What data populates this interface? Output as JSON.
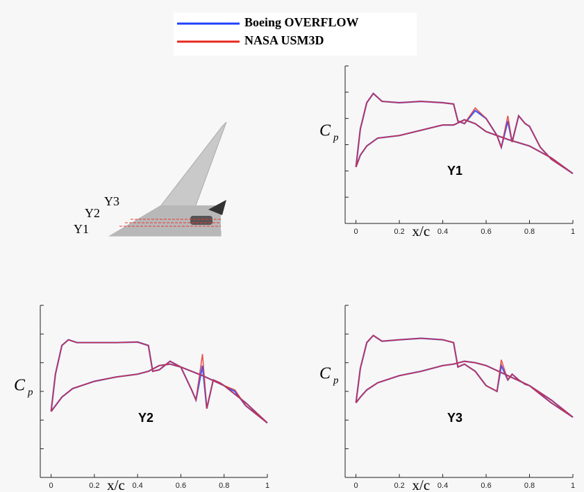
{
  "chart_data": [
    {
      "type": "line",
      "title": "Y1",
      "y_label": {
        "text": "C",
        "subscript": "p"
      },
      "x_label": "x/c",
      "x": [
        0,
        0.02,
        0.05,
        0.08,
        0.12,
        0.2,
        0.3,
        0.4,
        0.45,
        0.47,
        0.5,
        0.55,
        0.6,
        0.65,
        0.67,
        0.7,
        0.72,
        0.75,
        0.78,
        0.8,
        0.85,
        0.9,
        1,
        0.9,
        0.8,
        0.7,
        0.6,
        0.55,
        0.5,
        0.45,
        0.4,
        0.3,
        0.2,
        0.1,
        0.05,
        0.02,
        0
      ],
      "xlim": [
        -0.05,
        1
      ],
      "xticks": [
        0,
        0.2,
        0.4,
        0.6,
        0.8,
        1
      ],
      "ylim": [
        0,
        6
      ],
      "yticks": [
        0,
        1,
        2,
        3,
        4,
        5,
        6
      ],
      "series": [
        {
          "name": "Boeing OVERFLOW",
          "color": "#1f3fff",
          "values": [
            2.15,
            3.6,
            4.6,
            4.95,
            4.65,
            4.6,
            4.65,
            4.6,
            4.55,
            3.9,
            3.8,
            4.3,
            4.0,
            3.35,
            2.9,
            3.9,
            3.1,
            4.1,
            3.8,
            3.7,
            2.9,
            2.45,
            1.9,
            2.5,
            2.95,
            3.2,
            3.5,
            3.8,
            3.95,
            3.75,
            3.75,
            3.55,
            3.35,
            3.25,
            2.95,
            2.6,
            2.15
          ]
        },
        {
          "name": "NASA USM3D",
          "color": "#e8281e",
          "values": [
            2.15,
            3.6,
            4.6,
            4.95,
            4.65,
            4.6,
            4.65,
            4.6,
            4.55,
            3.9,
            3.8,
            4.4,
            4.0,
            3.35,
            2.9,
            4.1,
            3.1,
            4.1,
            3.8,
            3.7,
            2.9,
            2.45,
            1.9,
            2.5,
            2.95,
            3.2,
            3.5,
            3.8,
            3.95,
            3.75,
            3.75,
            3.55,
            3.35,
            3.25,
            2.95,
            2.6,
            2.15
          ]
        }
      ]
    },
    {
      "type": "line",
      "title": "Y2",
      "y_label": {
        "text": "C",
        "subscript": "p"
      },
      "x_label": "x/c",
      "x": [
        0,
        0.02,
        0.05,
        0.08,
        0.12,
        0.2,
        0.3,
        0.4,
        0.45,
        0.47,
        0.5,
        0.55,
        0.6,
        0.65,
        0.67,
        0.7,
        0.72,
        0.75,
        0.78,
        0.8,
        0.85,
        0.9,
        1,
        0.9,
        0.8,
        0.7,
        0.6,
        0.55,
        0.5,
        0.45,
        0.4,
        0.3,
        0.2,
        0.1,
        0.05,
        0.02,
        0
      ],
      "xlim": [
        -0.05,
        1
      ],
      "xticks": [
        0,
        0.2,
        0.4,
        0.6,
        0.8,
        1
      ],
      "ylim": [
        0,
        6
      ],
      "yticks": [
        0,
        1,
        2,
        3,
        4,
        5,
        6
      ],
      "series": [
        {
          "color": "#1f3fff",
          "values": [
            2.3,
            3.6,
            4.6,
            4.8,
            4.7,
            4.7,
            4.7,
            4.72,
            4.6,
            3.7,
            3.75,
            4.05,
            3.85,
            3.05,
            2.7,
            3.9,
            2.4,
            3.4,
            3.3,
            3.2,
            3.0,
            2.5,
            1.9,
            2.6,
            3.2,
            3.55,
            3.85,
            3.95,
            3.9,
            3.7,
            3.6,
            3.5,
            3.35,
            3.1,
            2.8,
            2.5,
            2.3
          ]
        },
        {
          "color": "#e8281e",
          "values": [
            2.3,
            3.6,
            4.6,
            4.8,
            4.7,
            4.7,
            4.7,
            4.72,
            4.6,
            3.7,
            3.75,
            4.05,
            3.85,
            3.05,
            2.7,
            4.3,
            2.4,
            3.4,
            3.3,
            3.2,
            3.05,
            2.5,
            1.9,
            2.6,
            3.2,
            3.55,
            3.85,
            3.95,
            3.9,
            3.7,
            3.6,
            3.5,
            3.35,
            3.1,
            2.8,
            2.5,
            2.3
          ]
        }
      ]
    },
    {
      "type": "line",
      "title": "Y3",
      "y_label": {
        "text": "C",
        "subscript": "p"
      },
      "x_label": "x/c",
      "x": [
        0,
        0.02,
        0.05,
        0.08,
        0.12,
        0.2,
        0.3,
        0.4,
        0.45,
        0.47,
        0.5,
        0.55,
        0.6,
        0.65,
        0.67,
        0.7,
        0.72,
        0.75,
        0.78,
        0.8,
        0.85,
        0.9,
        1,
        0.9,
        0.8,
        0.7,
        0.6,
        0.55,
        0.5,
        0.45,
        0.4,
        0.3,
        0.2,
        0.1,
        0.05,
        0.02,
        0
      ],
      "xlim": [
        -0.05,
        1
      ],
      "xticks": [
        0,
        0.2,
        0.4,
        0.6,
        0.8,
        1
      ],
      "ylim": [
        0,
        6
      ],
      "yticks": [
        0,
        1,
        2,
        3,
        4,
        5,
        6
      ],
      "series": [
        {
          "color": "#1f3fff",
          "values": [
            2.6,
            3.8,
            4.7,
            4.95,
            4.75,
            4.8,
            4.85,
            4.8,
            4.7,
            3.85,
            3.95,
            3.7,
            3.2,
            3.0,
            3.9,
            3.4,
            3.6,
            3.4,
            3.25,
            3.2,
            2.9,
            2.6,
            2.1,
            2.7,
            3.2,
            3.55,
            3.9,
            4.0,
            4.05,
            3.95,
            3.9,
            3.7,
            3.55,
            3.3,
            3.05,
            2.8,
            2.6
          ]
        },
        {
          "color": "#e8281e",
          "values": [
            2.6,
            3.8,
            4.7,
            4.95,
            4.75,
            4.8,
            4.85,
            4.8,
            4.7,
            3.85,
            3.95,
            3.7,
            3.2,
            3.0,
            4.1,
            3.4,
            3.6,
            3.4,
            3.25,
            3.2,
            2.9,
            2.6,
            2.1,
            2.7,
            3.2,
            3.55,
            3.9,
            4.0,
            4.05,
            3.95,
            3.9,
            3.7,
            3.55,
            3.3,
            3.05,
            2.8,
            2.6
          ]
        }
      ]
    }
  ],
  "diagram": {
    "labels": [
      "Y1",
      "Y2",
      "Y3"
    ]
  }
}
